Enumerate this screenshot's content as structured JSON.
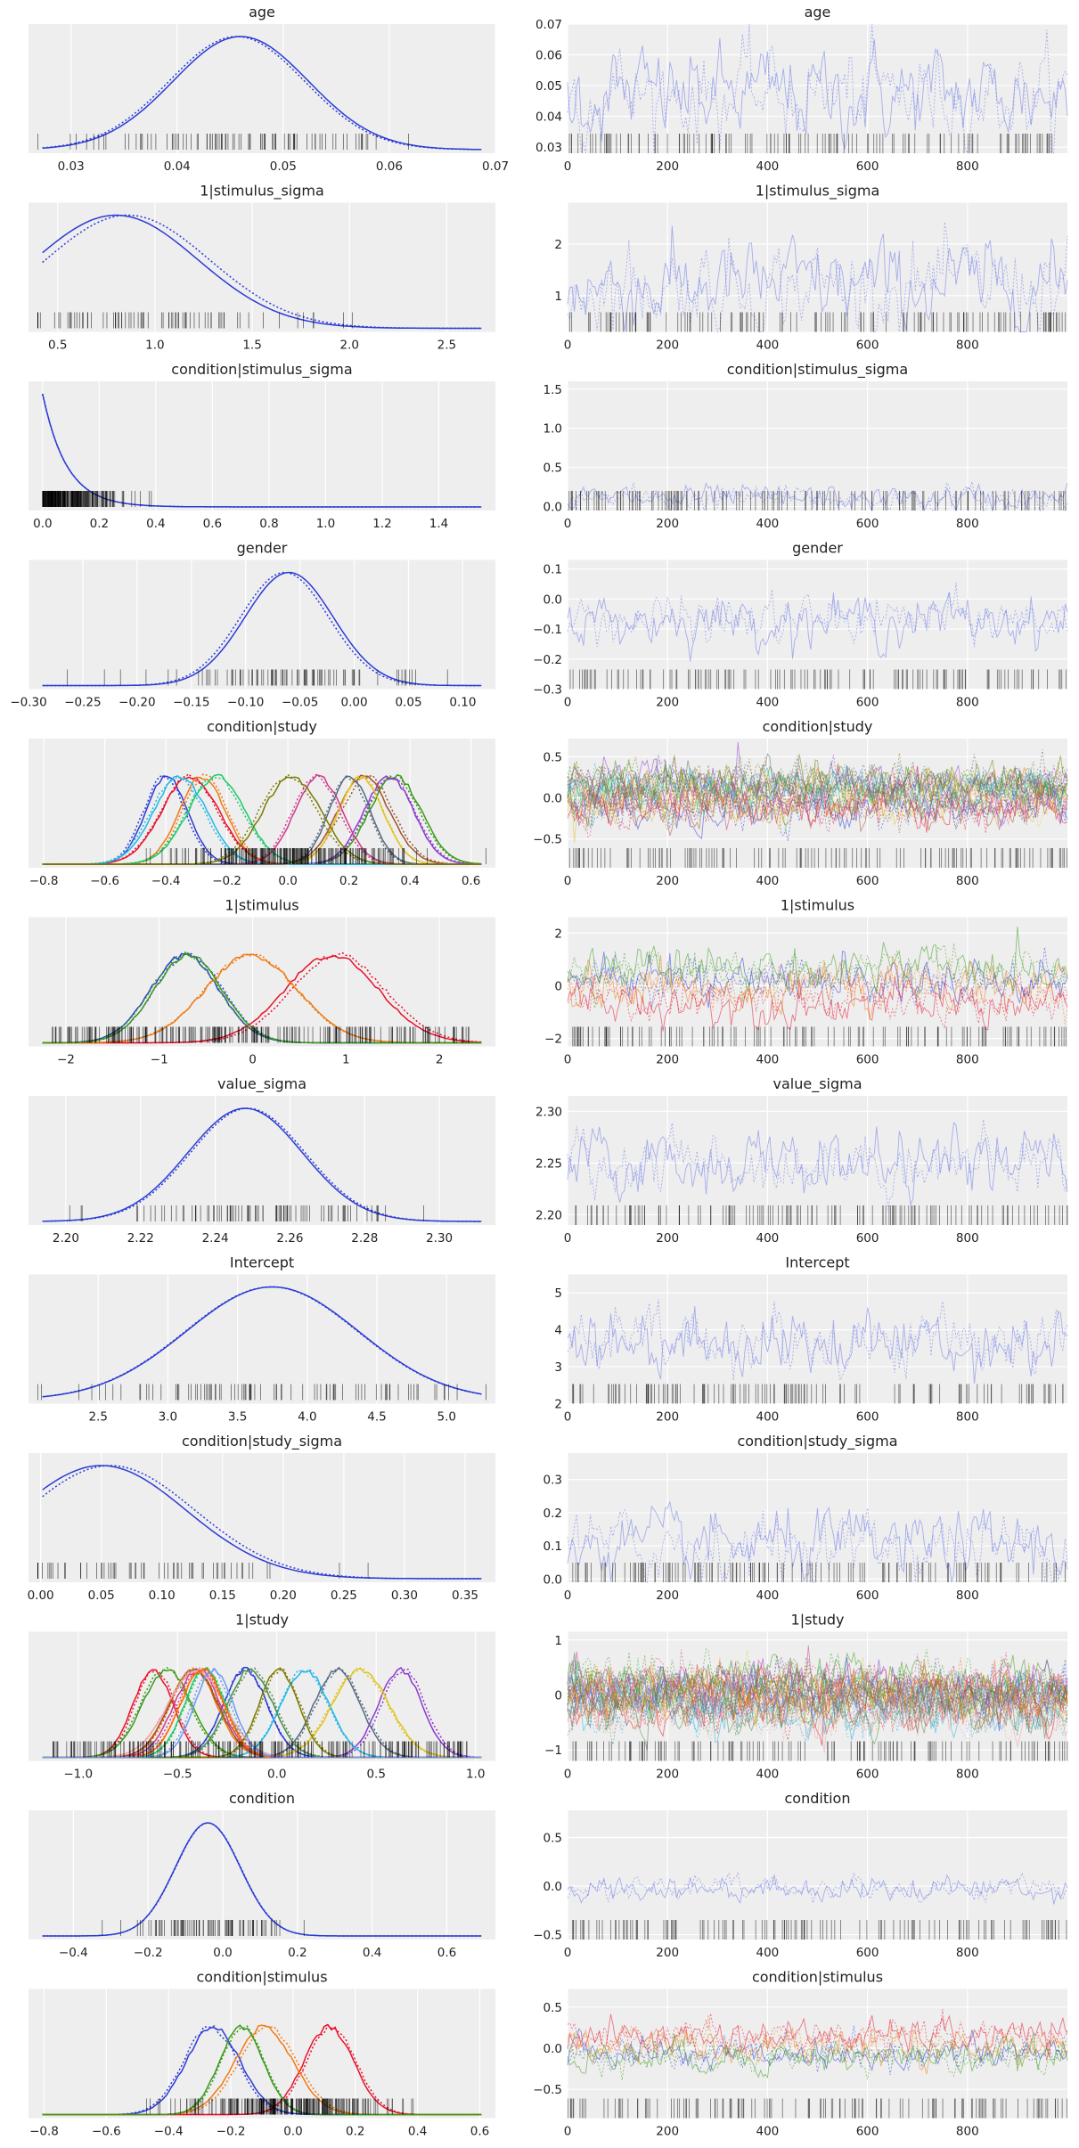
{
  "chart_data": [
    {
      "name": "age",
      "title": "age",
      "type": "kde_trace",
      "kde": {
        "xlim": [
          0.026,
          0.07
        ],
        "xticks": [
          0.03,
          0.04,
          0.05,
          0.06,
          0.07
        ],
        "tick_labels": [
          "0.03",
          "0.04",
          "0.05",
          "0.06",
          "0.07"
        ],
        "mode": 0.046,
        "spread": 0.006,
        "ncomp": 1,
        "rug": "sparse"
      },
      "trace": {
        "xlim": [
          0,
          1000
        ],
        "xticks": [
          0,
          200,
          400,
          600,
          800
        ],
        "tick_labels": [
          "0",
          "200",
          "400",
          "600",
          "800"
        ],
        "ylim": [
          0.028,
          0.07
        ],
        "yticks": [
          0.03,
          0.04,
          0.05,
          0.06,
          0.07
        ],
        "ytick_labels": [
          "0.03",
          "0.04",
          "0.05",
          "0.06",
          "0.07"
        ],
        "center": 0.047,
        "amp": 0.009,
        "ncomp": 1
      }
    },
    {
      "name": "1|stimulus_sigma",
      "title": "1|stimulus_sigma",
      "type": "kde_trace",
      "kde": {
        "xlim": [
          0.35,
          2.75
        ],
        "xticks": [
          0.5,
          1.0,
          1.5,
          2.0,
          2.5
        ],
        "tick_labels": [
          "0.5",
          "1.0",
          "1.5",
          "2.0",
          "2.5"
        ],
        "mode": 0.8,
        "spread": 0.4,
        "ncomp": 1,
        "rug": "sparse"
      },
      "trace": {
        "xlim": [
          0,
          1000
        ],
        "xticks": [
          0,
          200,
          400,
          600,
          800
        ],
        "tick_labels": [
          "0",
          "200",
          "400",
          "600",
          "800"
        ],
        "ylim": [
          0.3,
          2.8
        ],
        "yticks": [
          1,
          2
        ],
        "ytick_labels": [
          "1",
          "2"
        ],
        "center": 1.2,
        "amp": 0.5,
        "ncomp": 1
      }
    },
    {
      "name": "condition|stimulus_sigma",
      "title": "condition|stimulus_sigma",
      "type": "kde_trace",
      "kde": {
        "xlim": [
          -0.05,
          1.6
        ],
        "xticks": [
          0.0,
          0.2,
          0.4,
          0.6,
          0.8,
          1.0,
          1.2,
          1.4
        ],
        "tick_labels": [
          "0.0",
          "0.2",
          "0.4",
          "0.6",
          "0.8",
          "1.0",
          "1.2",
          "1.4"
        ],
        "mode": 0.0,
        "spread": 0.1,
        "ncomp": 1,
        "rug": "dense-left"
      },
      "trace": {
        "xlim": [
          0,
          1000
        ],
        "xticks": [
          0,
          200,
          400,
          600,
          800
        ],
        "tick_labels": [
          "0",
          "200",
          "400",
          "600",
          "800"
        ],
        "ylim": [
          -0.05,
          1.6
        ],
        "yticks": [
          0.0,
          0.5,
          1.0,
          1.5
        ],
        "ytick_labels": [
          "0.0",
          "0.5",
          "1.0",
          "1.5"
        ],
        "center": 0.1,
        "amp": 0.1,
        "ncomp": 1
      }
    },
    {
      "name": "gender",
      "title": "gender",
      "type": "kde_trace",
      "kde": {
        "xlim": [
          -0.3,
          0.13
        ],
        "xticks": [
          -0.3,
          -0.25,
          -0.2,
          -0.15,
          -0.1,
          -0.05,
          0.0,
          0.05,
          0.1
        ],
        "tick_labels": [
          "−0.30",
          "−0.25",
          "−0.20",
          "−0.15",
          "−0.10",
          "−0.05",
          "0.00",
          "0.05",
          "0.10"
        ],
        "mode": -0.06,
        "spread": 0.05,
        "ncomp": 1,
        "rug": "sparse"
      },
      "trace": {
        "xlim": [
          0,
          1000
        ],
        "xticks": [
          0,
          200,
          400,
          600,
          800
        ],
        "tick_labels": [
          "0",
          "200",
          "400",
          "600",
          "800"
        ],
        "ylim": [
          -0.3,
          0.13
        ],
        "yticks": [
          -0.3,
          -0.2,
          -0.1,
          0.0,
          0.1
        ],
        "ytick_labels": [
          "−0.3",
          "−0.2",
          "−0.1",
          "0.0",
          "0.1"
        ],
        "center": -0.07,
        "amp": 0.05,
        "ncomp": 1
      }
    },
    {
      "name": "condition|study",
      "title": "condition|study",
      "type": "kde_trace",
      "kde": {
        "xlim": [
          -0.85,
          0.68
        ],
        "xticks": [
          -0.8,
          -0.6,
          -0.4,
          -0.2,
          0.0,
          0.2,
          0.4,
          0.6
        ],
        "tick_labels": [
          "−0.8",
          "−0.6",
          "−0.4",
          "−0.2",
          "0.0",
          "0.2",
          "0.4",
          "0.6"
        ],
        "mode": 0.0,
        "spread": 0.08,
        "ncomp": 12,
        "rug": "dense-mid"
      },
      "trace": {
        "xlim": [
          0,
          1000
        ],
        "xticks": [
          0,
          200,
          400,
          600,
          800
        ],
        "tick_labels": [
          "0",
          "200",
          "400",
          "600",
          "800"
        ],
        "ylim": [
          -0.85,
          0.72
        ],
        "yticks": [
          -0.5,
          0.0,
          0.5
        ],
        "ytick_labels": [
          "−0.5",
          "0.0",
          "0.5"
        ],
        "center": 0.0,
        "amp": 0.15,
        "ncomp": 12
      }
    },
    {
      "name": "1|stimulus",
      "title": "1|stimulus",
      "type": "kde_trace",
      "kde": {
        "xlim": [
          -2.4,
          2.6
        ],
        "xticks": [
          -2,
          -1,
          0,
          1,
          2
        ],
        "tick_labels": [
          "−2",
          "−1",
          "0",
          "1",
          "2"
        ],
        "mode": 0.0,
        "spread": 0.45,
        "ncomp": 4,
        "rug": "dense-all"
      },
      "trace": {
        "xlim": [
          0,
          1000
        ],
        "xticks": [
          0,
          200,
          400,
          600,
          800
        ],
        "tick_labels": [
          "0",
          "200",
          "400",
          "600",
          "800"
        ],
        "ylim": [
          -2.3,
          2.6
        ],
        "yticks": [
          -2,
          0,
          2
        ],
        "ytick_labels": [
          "−2",
          "0",
          "2"
        ],
        "center": 0.0,
        "amp": 0.5,
        "ncomp": 4
      }
    },
    {
      "name": "value_sigma",
      "title": "value_sigma",
      "type": "kde_trace",
      "kde": {
        "xlim": [
          2.19,
          2.315
        ],
        "xticks": [
          2.2,
          2.22,
          2.24,
          2.26,
          2.28,
          2.3
        ],
        "tick_labels": [
          "2.20",
          "2.22",
          "2.24",
          "2.26",
          "2.28",
          "2.30"
        ],
        "mode": 2.248,
        "spread": 0.016,
        "ncomp": 1,
        "rug": "sparse"
      },
      "trace": {
        "xlim": [
          0,
          1000
        ],
        "xticks": [
          0,
          200,
          400,
          600,
          800
        ],
        "tick_labels": [
          "0",
          "200",
          "400",
          "600",
          "800"
        ],
        "ylim": [
          2.19,
          2.315
        ],
        "yticks": [
          2.2,
          2.25,
          2.3
        ],
        "ytick_labels": [
          "2.20",
          "2.25",
          "2.30"
        ],
        "center": 2.25,
        "amp": 0.018,
        "ncomp": 1
      }
    },
    {
      "name": "Intercept",
      "title": "Intercept",
      "type": "kde_trace",
      "kde": {
        "xlim": [
          2.0,
          5.35
        ],
        "xticks": [
          2.5,
          3.0,
          3.5,
          4.0,
          4.5,
          5.0
        ],
        "tick_labels": [
          "2.5",
          "3.0",
          "3.5",
          "4.0",
          "4.5",
          "5.0"
        ],
        "mode": 3.75,
        "spread": 0.55,
        "ncomp": 1,
        "rug": "sparse"
      },
      "trace": {
        "xlim": [
          0,
          1000
        ],
        "xticks": [
          0,
          200,
          400,
          600,
          800
        ],
        "tick_labels": [
          "0",
          "200",
          "400",
          "600",
          "800"
        ],
        "ylim": [
          2.0,
          5.5
        ],
        "yticks": [
          2,
          3,
          4,
          5
        ],
        "ytick_labels": [
          "2",
          "3",
          "4",
          "5"
        ],
        "center": 3.7,
        "amp": 0.55,
        "ncomp": 1
      }
    },
    {
      "name": "condition|study_sigma",
      "title": "condition|study_sigma",
      "type": "kde_trace",
      "kde": {
        "xlim": [
          -0.01,
          0.375
        ],
        "xticks": [
          0.0,
          0.05,
          0.1,
          0.15,
          0.2,
          0.25,
          0.3,
          0.35
        ],
        "tick_labels": [
          "0.00",
          "0.05",
          "0.10",
          "0.15",
          "0.20",
          "0.25",
          "0.30",
          "0.35"
        ],
        "mode": 0.05,
        "spread": 0.07,
        "ncomp": 1,
        "rug": "sparse"
      },
      "trace": {
        "xlim": [
          0,
          1000
        ],
        "xticks": [
          0,
          200,
          400,
          600,
          800
        ],
        "tick_labels": [
          "0",
          "200",
          "400",
          "600",
          "800"
        ],
        "ylim": [
          -0.01,
          0.38
        ],
        "yticks": [
          0.0,
          0.1,
          0.2,
          0.3
        ],
        "ytick_labels": [
          "0.0",
          "0.1",
          "0.2",
          "0.3"
        ],
        "center": 0.1,
        "amp": 0.06,
        "ncomp": 1
      }
    },
    {
      "name": "1|study",
      "title": "1|study",
      "type": "kde_trace",
      "kde": {
        "xlim": [
          -1.25,
          1.1
        ],
        "xticks": [
          -1.0,
          -0.5,
          0.0,
          0.5,
          1.0
        ],
        "tick_labels": [
          "−1.0",
          "−0.5",
          "0.0",
          "0.5",
          "1.0"
        ],
        "mode": 0.0,
        "spread": 0.12,
        "ncomp": 16,
        "rug": "dense-all"
      },
      "trace": {
        "xlim": [
          0,
          1000
        ],
        "xticks": [
          0,
          200,
          400,
          600,
          800
        ],
        "tick_labels": [
          "0",
          "200",
          "400",
          "600",
          "800"
        ],
        "ylim": [
          -1.2,
          1.15
        ],
        "yticks": [
          -1,
          0,
          1
        ],
        "ytick_labels": [
          "−1",
          "0",
          "1"
        ],
        "center": 0.0,
        "amp": 0.25,
        "ncomp": 16
      }
    },
    {
      "name": "condition",
      "title": "condition",
      "type": "kde_trace",
      "kde": {
        "xlim": [
          -0.52,
          0.73
        ],
        "xticks": [
          -0.4,
          -0.2,
          0.0,
          0.2,
          0.4,
          0.6
        ],
        "tick_labels": [
          "−0.4",
          "−0.2",
          "0.0",
          "0.2",
          "0.4",
          "0.6"
        ],
        "mode": -0.04,
        "spread": 0.08,
        "ncomp": 1,
        "rug": "sparse"
      },
      "trace": {
        "xlim": [
          0,
          1000
        ],
        "xticks": [
          0,
          200,
          400,
          600,
          800
        ],
        "tick_labels": [
          "0",
          "200",
          "400",
          "600",
          "800"
        ],
        "ylim": [
          -0.55,
          0.78
        ],
        "yticks": [
          -0.5,
          0.0,
          0.5
        ],
        "ytick_labels": [
          "−0.5",
          "0.0",
          "0.5"
        ],
        "center": -0.02,
        "amp": 0.08,
        "ncomp": 1
      }
    },
    {
      "name": "condition|stimulus",
      "title": "condition|stimulus",
      "type": "kde_trace",
      "kde": {
        "xlim": [
          -0.85,
          0.65
        ],
        "xticks": [
          -0.8,
          -0.6,
          -0.4,
          -0.2,
          0.0,
          0.2,
          0.4,
          0.6
        ],
        "tick_labels": [
          "−0.8",
          "−0.6",
          "−0.4",
          "−0.2",
          "0.0",
          "0.2",
          "0.4",
          "0.6"
        ],
        "mode": 0.0,
        "spread": 0.08,
        "ncomp": 4,
        "rug": "dense-mid"
      },
      "trace": {
        "xlim": [
          0,
          1000
        ],
        "xticks": [
          0,
          200,
          400,
          600,
          800
        ],
        "tick_labels": [
          "0",
          "200",
          "400",
          "600",
          "800"
        ],
        "ylim": [
          -0.85,
          0.72
        ],
        "yticks": [
          -0.5,
          0.0,
          0.5
        ],
        "ytick_labels": [
          "−0.5",
          "0.0",
          "0.5"
        ],
        "center": 0.0,
        "amp": 0.12,
        "ncomp": 4
      }
    }
  ],
  "colors": {
    "single": "#2a3bd6",
    "multi": [
      "#2a3bd6",
      "#e8102a",
      "#f07a12",
      "#3a9a1a",
      "#1ec96a",
      "#8c3ad0",
      "#20b7e8",
      "#a0522d",
      "#e0c420",
      "#d03a8a",
      "#566a80",
      "#7a7a00",
      "#f0a0a0",
      "#4a8a4a",
      "#ff6a00",
      "#6a9af0"
    ],
    "panel_bg": "#eeeeee",
    "rug": "#000000"
  }
}
